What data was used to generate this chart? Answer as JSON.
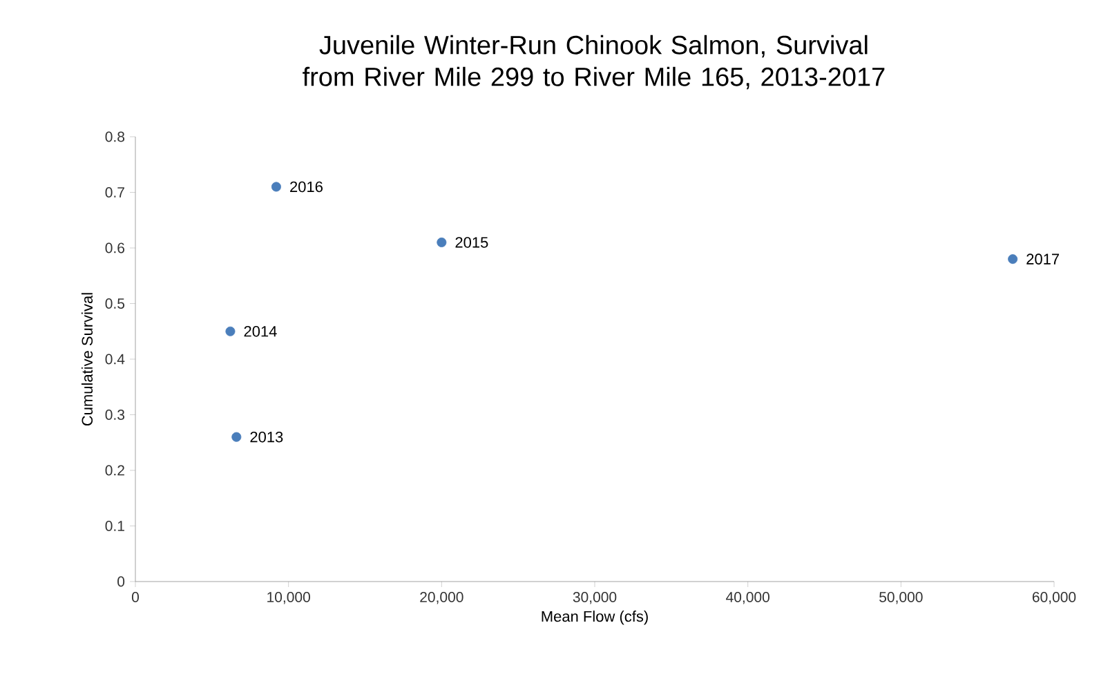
{
  "chart_data": {
    "type": "scatter",
    "title": "Juvenile Winter-Run Chinook Salmon, Survival from River Mile 299 to River Mile 165, 2013-2017",
    "xlabel": "Mean Flow (cfs)",
    "ylabel": "Cumulative Survival",
    "x": [
      6600,
      6200,
      20000,
      9200,
      57300
    ],
    "values": [
      0.26,
      0.45,
      0.61,
      0.71,
      0.58
    ],
    "color": "#4a7ebb",
    "xlim": [
      0,
      60000
    ],
    "ylim": [
      0,
      0.8
    ],
    "xticks": [
      0,
      {
        "value": 10000,
        "label": "10,000"
      },
      {
        "value": 20000,
        "label": "20,000"
      },
      {
        "value": 30000,
        "label": "30,000"
      },
      {
        "value": 40000,
        "label": "40,000"
      },
      {
        "value": 50000,
        "label": "50,000"
      },
      {
        "value": 60000,
        "label": "60,000"
      }
    ],
    "yticks": [
      0,
      0.1,
      0.2,
      0.3,
      0.4,
      0.5,
      0.6,
      0.7,
      0.8
    ],
    "annotations": [
      {
        "text": "2013",
        "x": 6600,
        "y": 0.26
      },
      {
        "text": "2014",
        "x": 6200,
        "y": 0.45
      },
      {
        "text": "2015",
        "x": 20000,
        "y": 0.61
      },
      {
        "text": "2016",
        "x": 9200,
        "y": 0.71
      },
      {
        "text": "2017",
        "x": 57300,
        "y": 0.58
      }
    ]
  }
}
